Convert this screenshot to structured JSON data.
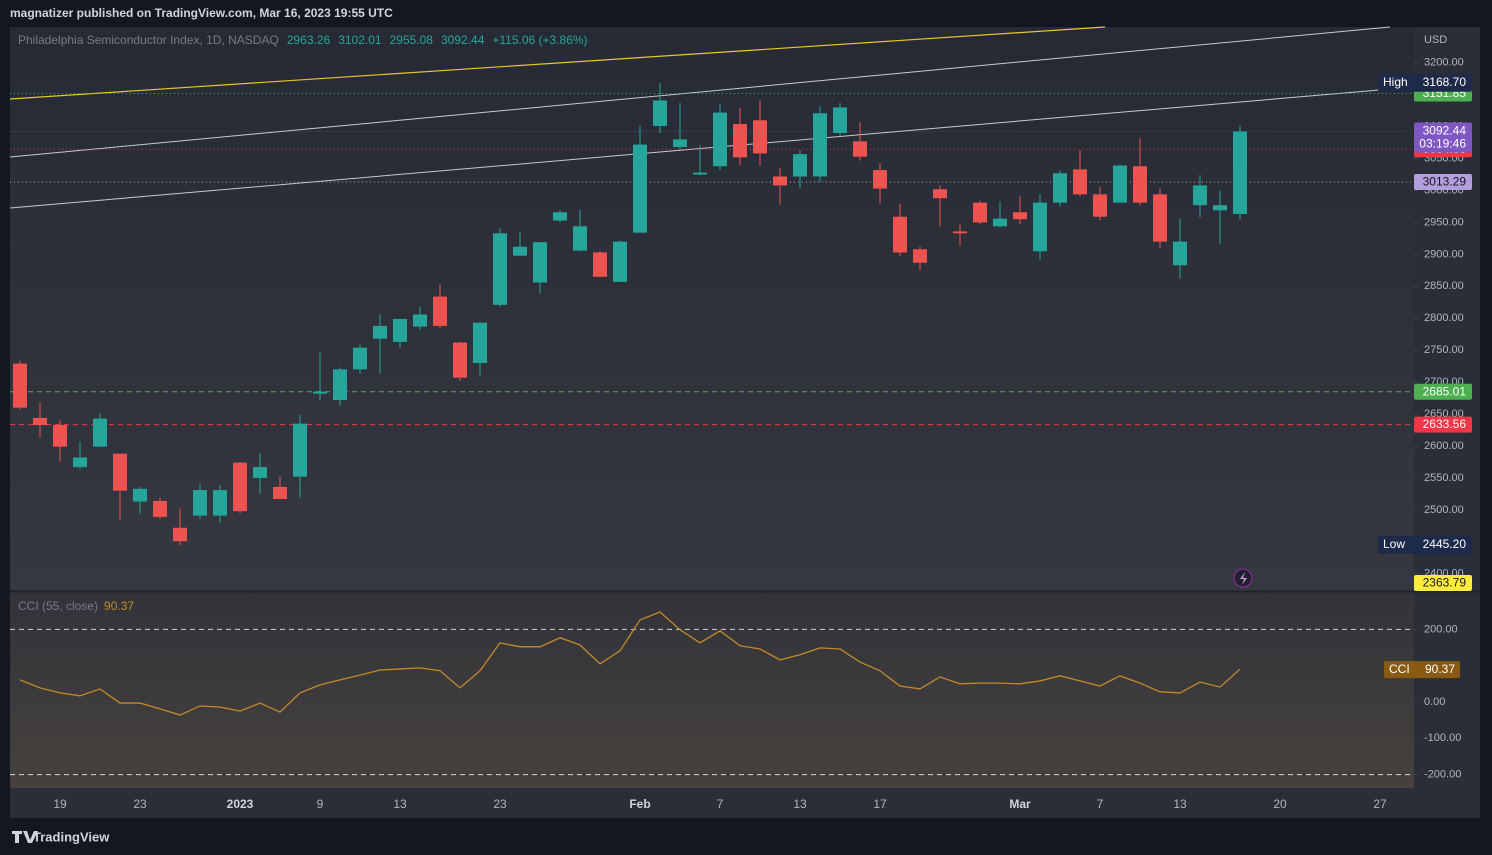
{
  "header": {
    "publisher_line": "magnatizer published on TradingView.com, Mar 16, 2023 19:55 UTC"
  },
  "chart_data": [
    {
      "type": "candlestick",
      "title": "Philadelphia Semiconductor Index, 1D, NASDAQ",
      "currency": "USD",
      "change_label": "+115.06 (+3.86%)",
      "categories": [
        null,
        null,
        "19",
        null,
        null,
        null,
        "23",
        null,
        null,
        null,
        null,
        "2023",
        null,
        null,
        null,
        "9",
        null,
        null,
        null,
        "13",
        null,
        null,
        null,
        null,
        "23",
        null,
        null,
        null,
        null,
        null,
        null,
        "Feb",
        null,
        null,
        null,
        "7",
        null,
        null,
        null,
        "13",
        null,
        null,
        null,
        "17",
        null,
        null,
        null,
        null,
        null,
        null,
        "Mar",
        null,
        null,
        null,
        "7",
        null,
        null,
        null,
        "13",
        null,
        null,
        null,
        null,
        "20",
        null,
        null,
        null,
        null,
        "27",
        null
      ],
      "open": [
        2729,
        2644,
        2633,
        2567,
        2599,
        2588,
        2513,
        2514,
        2472,
        2491,
        2491,
        2574,
        2550,
        2536,
        2552,
        2682,
        2672,
        2720,
        2768,
        2763,
        2787,
        2834,
        2762,
        2730,
        2821,
        2898,
        2856,
        2953,
        2906,
        2903,
        2857,
        2934,
        3101,
        3068,
        3025,
        3038,
        3104,
        3110,
        3022,
        3022,
        3022,
        3090,
        3077,
        3032,
        2959,
        2908,
        3002,
        2936,
        2981,
        2944,
        2966,
        2905,
        2981,
        3033,
        2994,
        2981,
        3038,
        2994,
        2883,
        2977,
        2969,
        2963.26,
        null,
        null,
        null,
        null,
        null,
        null,
        null,
        null
      ],
      "high": [
        2734,
        2668,
        2640,
        2607,
        2651,
        2588,
        2536,
        2519,
        2502,
        2542,
        2539,
        2575,
        2589,
        2552,
        2649,
        2746,
        2723,
        2759,
        2806,
        2799,
        2818,
        2853,
        2763,
        2793,
        2941,
        2936,
        2919,
        2969,
        2970,
        2905,
        2922,
        3102,
        3168.7,
        3137,
        3071,
        3135,
        3129,
        3141,
        3035,
        3063,
        3132,
        3137,
        3107,
        3043,
        2979,
        2912,
        3008,
        2947,
        2984,
        2983,
        2991,
        2995,
        3032,
        3063,
        3006,
        3041,
        3082,
        3003,
        2956,
        3024,
        3000,
        3102.01,
        null,
        null,
        null,
        null,
        null,
        null,
        null,
        null
      ],
      "low": [
        2657,
        2614,
        2575,
        2564,
        2599,
        2483,
        2494,
        2486,
        2445.2,
        2486,
        2480,
        2495,
        2525,
        2517,
        2519,
        2671,
        2663,
        2713,
        2713,
        2754,
        2782,
        2785,
        2702,
        2709,
        2818,
        2897,
        2839,
        2950,
        2905,
        2864,
        2857,
        2934,
        3090,
        3063,
        3024,
        3032,
        3039,
        3039,
        2978,
        3003,
        3013,
        3085,
        3047,
        2979,
        2897,
        2875,
        2944,
        2914,
        2947,
        2942,
        2947,
        2892,
        2975,
        2991,
        2953,
        2981,
        2977,
        2909,
        2862,
        2958,
        2916,
        2955.08,
        null,
        null,
        null,
        null,
        null,
        null,
        null,
        null
      ],
      "close": [
        2660,
        2633,
        2599,
        2582,
        2643,
        2530,
        2533,
        2489,
        2451,
        2531,
        2531,
        2498,
        2567,
        2517,
        2635,
        2685,
        2720,
        2754,
        2788,
        2799,
        2806,
        2788,
        2707,
        2793,
        2933,
        2912,
        2919,
        2966,
        2944,
        2865,
        2920,
        3072,
        3141,
        3080,
        3028,
        3122,
        3052,
        3058,
        3008,
        3057,
        3121,
        3130,
        3053,
        3003,
        2903,
        2887,
        2988,
        2933,
        2950,
        2956,
        2955,
        2981,
        3027,
        2994,
        2959,
        3039,
        2981,
        2920,
        2920,
        3008,
        2977,
        3092.44,
        null,
        null,
        null,
        null,
        null,
        null,
        null,
        null
      ],
      "up_color": "#26a69a",
      "down_color": "#ef5350",
      "ylim": [
        2373,
        3256
      ],
      "yticks": [
        {
          "value": 2400,
          "label": "2400.00"
        },
        {
          "value": 2450,
          "label": "2450.00"
        },
        {
          "value": 2500,
          "label": "2500.00"
        },
        {
          "value": 2550,
          "label": "2550.00"
        },
        {
          "value": 2600,
          "label": "2600.00"
        },
        {
          "value": 2650,
          "label": "2650.00"
        },
        {
          "value": 2700,
          "label": "2700.00"
        },
        {
          "value": 2750,
          "label": "2750.00"
        },
        {
          "value": 2800,
          "label": "2800.00"
        },
        {
          "value": 2850,
          "label": "2850.00"
        },
        {
          "value": 2900,
          "label": "2900.00"
        },
        {
          "value": 2950,
          "label": "2950.00"
        },
        {
          "value": 3000,
          "label": "3000.00"
        },
        {
          "value": 3050,
          "label": "3050.00"
        },
        {
          "value": 3100,
          "label": "3100.00"
        },
        {
          "value": 3150,
          "label": "3150.00"
        },
        {
          "value": 3200,
          "label": "3200.00"
        }
      ],
      "levels": [
        {
          "value": 3151.85,
          "color": "#4caf50",
          "style": "dotted"
        },
        {
          "value": 3064.68,
          "color": "#f23645",
          "style": "dotted"
        },
        {
          "value": 3013.29,
          "color": "#b39ddb",
          "style": "dotted"
        },
        {
          "value": 2685.01,
          "color": "#4caf50",
          "style": "dashed"
        },
        {
          "value": 2633.56,
          "color": "#f23645",
          "style": "dashed"
        }
      ],
      "high_marker": {
        "name": "High",
        "value": 3168.7,
        "label": "3168.70"
      },
      "low_marker": {
        "name": "Low",
        "value": 2445.2,
        "label": "2445.20"
      },
      "trendline_marker": {
        "value": 2363.79,
        "color": "#ffeb3b"
      },
      "countdown": "03:19:46",
      "last_color": "#7e57c2"
    },
    {
      "type": "line",
      "title": "CCI (55, close)",
      "name": "CCI",
      "color": "#c28a2a",
      "values": [
        61,
        39,
        25,
        17,
        36,
        -3,
        -3,
        -19,
        -36,
        -11,
        -14,
        -25,
        -3,
        -28,
        25,
        47,
        61,
        74,
        88,
        91,
        94,
        86,
        39,
        86,
        163,
        152,
        152,
        177,
        157,
        105,
        141,
        226,
        248,
        199,
        163,
        196,
        155,
        146,
        116,
        130,
        149,
        146,
        110,
        86,
        44,
        36,
        69,
        50,
        52,
        52,
        50,
        58,
        72,
        58,
        44,
        72,
        52,
        28,
        25,
        55,
        41,
        90.37,
        null,
        null,
        null,
        null,
        null,
        null,
        null,
        null
      ],
      "ylim": [
        -237,
        303
      ],
      "yticks": [
        {
          "value": 200,
          "label": "200.00"
        },
        {
          "value": 0,
          "label": "0.00"
        },
        {
          "value": -100,
          "label": "-100.00"
        },
        {
          "value": -200,
          "label": "-200.00"
        }
      ],
      "levels": [
        200,
        -200
      ]
    }
  ],
  "footer": {
    "brand": "TradingView"
  }
}
